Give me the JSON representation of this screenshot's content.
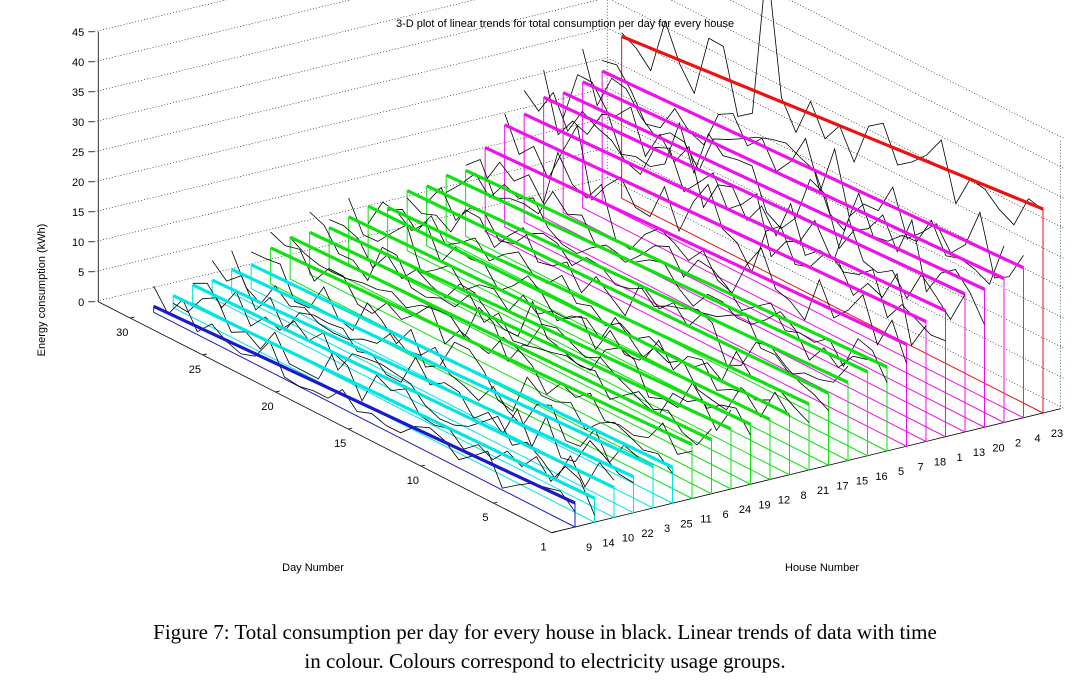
{
  "figure": {
    "caption_line1": "Figure 7: Total consumption per day for every house in black. Linear trends of data with time",
    "caption_line2": "in colour. Colours correspond to electricity usage groups."
  },
  "chart_data": {
    "type": "line",
    "title": "3-D plot of linear trends for total consumption per day for every house",
    "xlabel": "Day Number",
    "ylabel": "House Number",
    "zlabel": "Energy consumption (kWh)",
    "zlim": [
      0,
      45
    ],
    "z_ticks": [
      0,
      5,
      10,
      15,
      20,
      25,
      30,
      35,
      40,
      45
    ],
    "day_ticks": [
      1,
      5,
      10,
      15,
      20,
      25,
      30
    ],
    "day_range": [
      1,
      30
    ],
    "grid": true,
    "house_order": [
      "9",
      "14",
      "10",
      "22",
      "3",
      "25",
      "11",
      "6",
      "24",
      "19",
      "12",
      "8",
      "21",
      "17",
      "15",
      "16",
      "5",
      "7",
      "18",
      "1",
      "13",
      "20",
      "2",
      "4",
      "23"
    ],
    "colors": {
      "blue": "#1a1acc",
      "cyan": "#00e5e5",
      "green": "#11e011",
      "magenta": "#ee11ee",
      "red": "#ee1111",
      "data": "#000000"
    },
    "groups": [
      "blue",
      "cyan",
      "cyan",
      "cyan",
      "cyan",
      "cyan",
      "green",
      "green",
      "green",
      "green",
      "green",
      "green",
      "green",
      "green",
      "green",
      "green",
      "green",
      "magenta",
      "magenta",
      "magenta",
      "magenta",
      "magenta",
      "magenta",
      "magenta",
      "red"
    ],
    "trend_start_day1": [
      4,
      4,
      5,
      6,
      7,
      6,
      9,
      9,
      10,
      10,
      10,
      10,
      11,
      12,
      13,
      14,
      14,
      17,
      20,
      21,
      23,
      23,
      24,
      25,
      34
    ],
    "trend_end_day30": [
      1,
      2,
      3,
      3,
      4,
      4,
      6,
      7,
      7,
      7,
      8,
      9,
      8,
      10,
      10,
      11,
      11,
      14,
      17,
      18,
      20,
      20,
      21,
      22,
      27
    ]
  }
}
